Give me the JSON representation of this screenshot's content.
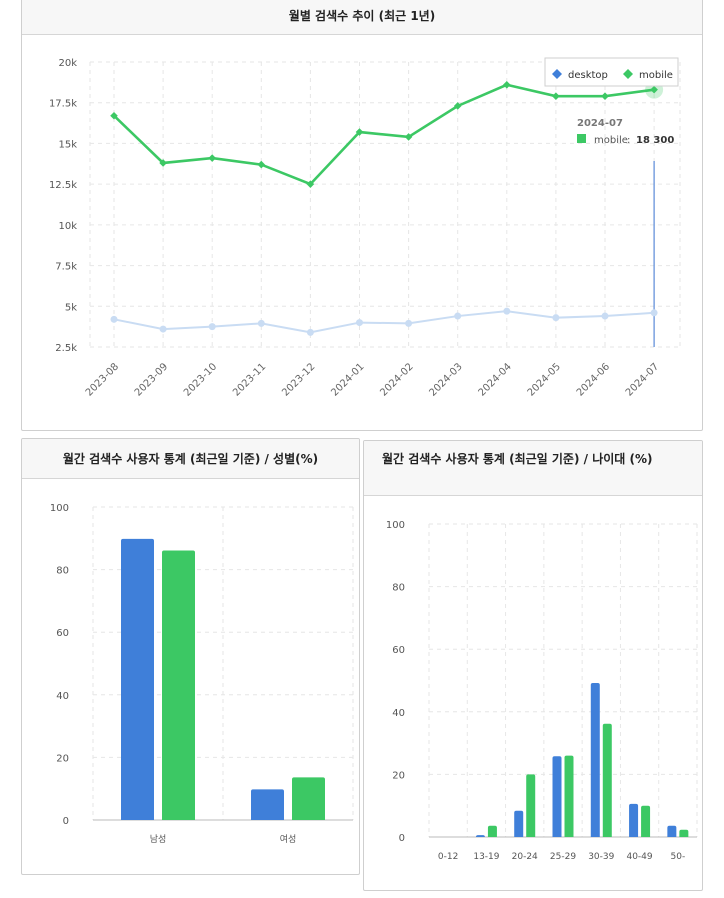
{
  "colors": {
    "desktop": "#3f7fd9",
    "mobile": "#3cc864",
    "desktop_faded": "#c9dcf3",
    "grid": "#e6e6e6"
  },
  "panel1": {
    "title": "월별 검색수 추이 (최근 1년)"
  },
  "panel2": {
    "title": "월간 검색수 사용자 통계 (최근일 기준) / 성별(%)"
  },
  "panel3": {
    "title": "월간 검색수 사용자 통계 (최근일 기준) / 나이대 (%)"
  },
  "tooltip": {
    "title": "2024-07",
    "series": "mobile",
    "sep": ":",
    "value": "18 300"
  },
  "chart_data": [
    {
      "type": "line",
      "title": "월별 검색수 추이 (최근 1년)",
      "x": [
        "2023-08",
        "2023-09",
        "2023-10",
        "2023-11",
        "2023-12",
        "2024-01",
        "2024-02",
        "2024-03",
        "2024-04",
        "2024-05",
        "2024-06",
        "2024-07"
      ],
      "series": [
        {
          "name": "desktop",
          "values": [
            4200,
            3600,
            3750,
            3950,
            3400,
            4000,
            3950,
            4400,
            4700,
            4300,
            4400,
            4600
          ]
        },
        {
          "name": "mobile",
          "values": [
            16700,
            13800,
            14100,
            13700,
            12500,
            15700,
            15400,
            17300,
            18600,
            17900,
            17900,
            18300
          ]
        }
      ],
      "yticks": [
        2500,
        5000,
        7500,
        10000,
        12500,
        15000,
        17500,
        20000
      ],
      "ytick_labels": [
        "2.5k",
        "5k",
        "7.5k",
        "10k",
        "12.5k",
        "15k",
        "17.5k",
        "20k"
      ],
      "ylim": [
        2500,
        20000
      ],
      "legend": [
        "desktop",
        "mobile"
      ],
      "legend_position": "top-right",
      "grid": true
    },
    {
      "type": "bar",
      "title": "월간 검색수 사용자 통계 (최근일 기준) / 성별(%)",
      "categories": [
        "남성",
        "여성"
      ],
      "series": [
        {
          "name": "desktop",
          "values": [
            89.8,
            9.8
          ]
        },
        {
          "name": "mobile",
          "values": [
            86.1,
            13.6
          ]
        }
      ],
      "yticks": [
        0,
        20,
        40,
        60,
        80,
        100
      ],
      "ylim": [
        0,
        100
      ],
      "grid": true
    },
    {
      "type": "bar",
      "title": "월간 검색수 사용자 통계 (최근일 기준) / 나이대 (%)",
      "categories": [
        "0-12",
        "13-19",
        "20-24",
        "25-29",
        "30-39",
        "40-49",
        "50-"
      ],
      "series": [
        {
          "name": "desktop",
          "values": [
            0,
            0.6,
            8.4,
            25.8,
            49.2,
            10.6,
            3.6
          ]
        },
        {
          "name": "mobile",
          "values": [
            0,
            3.6,
            20.0,
            26.0,
            36.2,
            10.0,
            2.3
          ]
        }
      ],
      "yticks": [
        0,
        20,
        40,
        60,
        80,
        100
      ],
      "ylim": [
        0,
        100
      ],
      "grid": true
    }
  ]
}
